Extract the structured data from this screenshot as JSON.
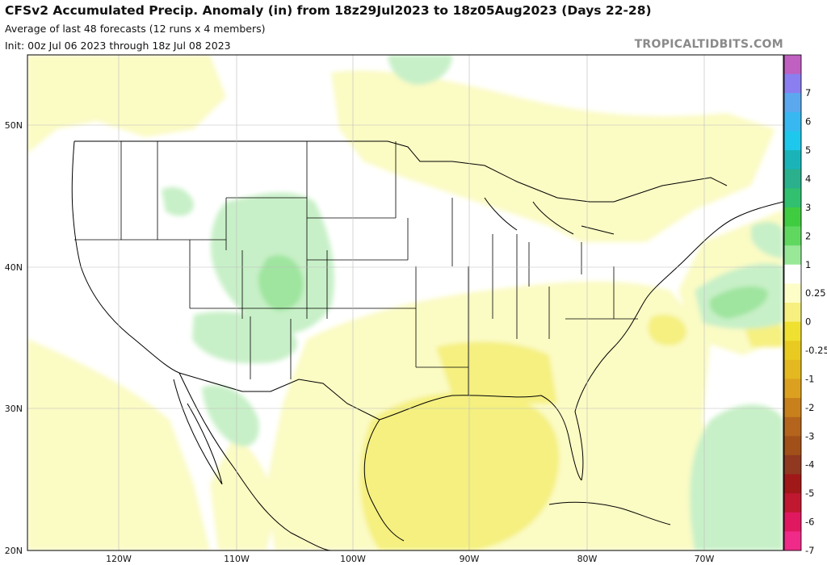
{
  "header": {
    "title": "CFSv2 Accumulated Precip. Anomaly (in) from 18z29Jul2023 to 18z05Aug2023 (Days 22-28)",
    "subtitle": "Average of last 48 forecasts (12 runs x 4 members)",
    "init": "Init: 00z Jul 06 2023 through 18z Jul 08 2023",
    "brand": "TROPICALTIDBITS.COM"
  },
  "map": {
    "region": "Contiguous United States, southern Canada, Mexico, Gulf of Mexico and western Atlantic",
    "lon_labels": [
      "120W",
      "110W",
      "100W",
      "90W",
      "80W",
      "70W"
    ],
    "lat_labels": [
      "50N",
      "40N",
      "30N",
      "20N"
    ],
    "anomaly_areas": [
      {
        "level": "0.25",
        "area": "Central Rockies (Colorado, Wyoming, Utah)"
      },
      {
        "level": "0.25",
        "area": "Arizona and New Mexico"
      },
      {
        "level": "0.25",
        "area": "Sierra Madre, NW Mexico"
      },
      {
        "level": "0.25",
        "area": "Western Atlantic east of Mid-Atlantic coast"
      },
      {
        "level": "0.25",
        "area": "Southwestern Atlantic east of Bahamas"
      },
      {
        "level": "0.25",
        "area": "Hudson Bay"
      },
      {
        "level": "-0.25",
        "area": "Gulf of Mexico"
      },
      {
        "level": "-0.25",
        "area": "Southeastern US"
      },
      {
        "level": "-0.25",
        "area": "Pacific off Baja California"
      },
      {
        "level": "-0.25",
        "area": "Great Plains and Canadian Prairies"
      },
      {
        "level": "-0.5",
        "area": "Central Gulf of Mexico"
      },
      {
        "level": "-0.5",
        "area": "Offshore Carolinas"
      }
    ]
  },
  "colorbar": {
    "labels": [
      "7",
      "6",
      "5",
      "4",
      "3",
      "2",
      "1",
      "0.25",
      "0",
      "-0.25",
      "-1",
      "-2",
      "-3",
      "-4",
      "-5",
      "-6",
      "-7"
    ],
    "colors": [
      "#c060c0",
      "#8a7ef0",
      "#5ca8ee",
      "#38b8f0",
      "#1ec8ec",
      "#1ab4b8",
      "#2ab08c",
      "#30c070",
      "#40cc40",
      "#60d860",
      "#98e898",
      "#ffffff",
      "#fdfdc8",
      "#f7f080",
      "#f0e030",
      "#e9ca20",
      "#e4b820",
      "#dca020",
      "#c8801c",
      "#b4641c",
      "#a05018",
      "#903820",
      "#a01818",
      "#c01830",
      "#e01860",
      "#f02a88"
    ]
  }
}
